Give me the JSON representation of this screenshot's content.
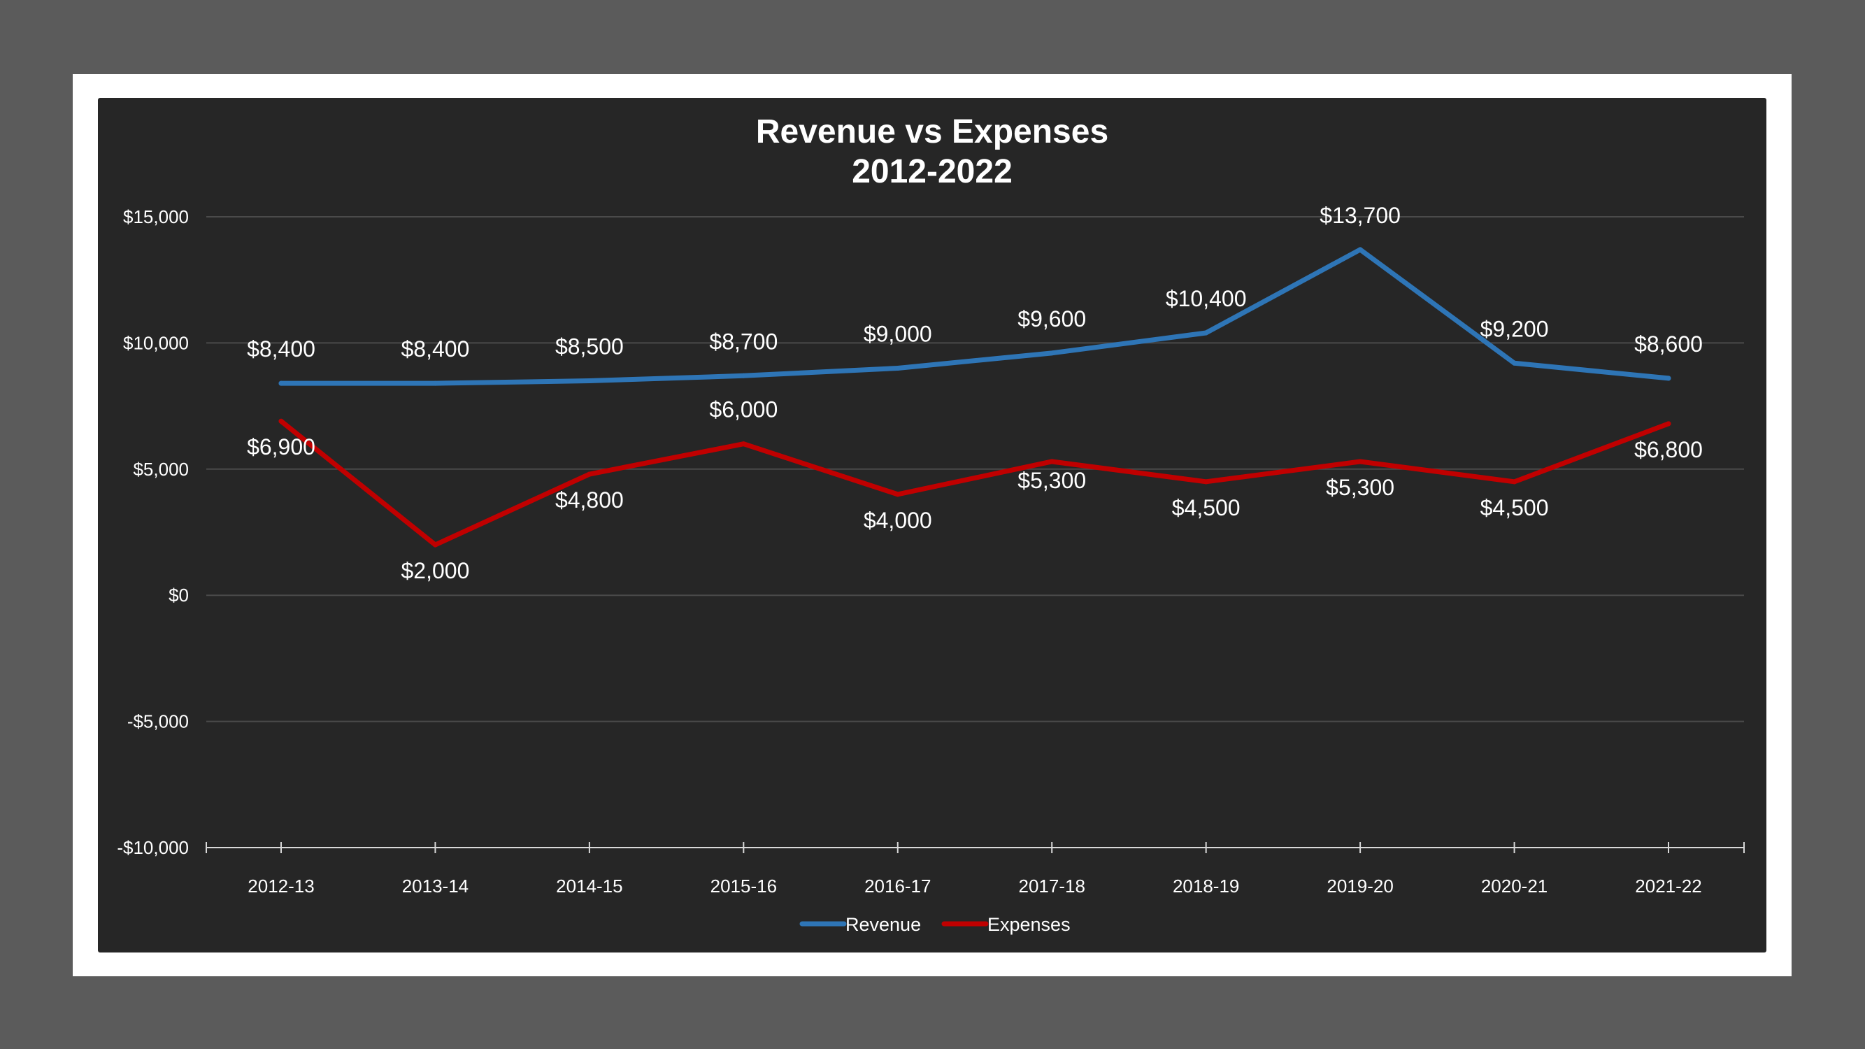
{
  "chart_data": {
    "type": "line",
    "title": [
      "Revenue vs Expenses",
      "2012-2022"
    ],
    "categories": [
      "2012-13",
      "2013-14",
      "2014-15",
      "2015-16",
      "2016-17",
      "2017-18",
      "2018-19",
      "2019-20",
      "2020-21",
      "2021-22"
    ],
    "series": [
      {
        "name": "Revenue",
        "color": "#2e75b6",
        "values": [
          8400,
          8400,
          8500,
          8700,
          9000,
          9600,
          10400,
          13700,
          9200,
          8600
        ],
        "labels": [
          "$8,400",
          "$8,400",
          "$8,500",
          "$8,700",
          "$9,000",
          "$9,600",
          "$10,400",
          "$13,700",
          "$9,200",
          "$8,600"
        ]
      },
      {
        "name": "Expenses",
        "color": "#c00000",
        "values": [
          6900,
          2000,
          4800,
          6000,
          4000,
          5300,
          4500,
          5300,
          4500,
          6800
        ],
        "labels": [
          "$6,900",
          "$2,000",
          "$4,800",
          "$6,000",
          "$4,000",
          "$5,300",
          "$4,500",
          "$5,300",
          "$4,500",
          "$6,800"
        ]
      }
    ],
    "ylim": [
      -10000,
      15000
    ],
    "yticks": [
      15000,
      10000,
      5000,
      0,
      -5000,
      -10000
    ],
    "ytick_labels": [
      "$15,000",
      "$10,000",
      "$5,000",
      "$0",
      "-$5,000",
      "-$10,000"
    ],
    "grid": true,
    "legend_position": "bottom",
    "colors": {
      "background": "#262626",
      "gridline": "#4a4a4a",
      "text": "#ffffff"
    }
  }
}
